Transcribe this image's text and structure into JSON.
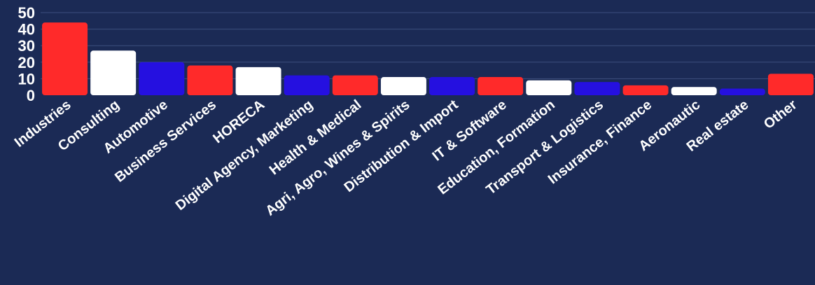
{
  "chart_data": {
    "type": "bar",
    "categories": [
      "Industries",
      "Consulting",
      "Automotive",
      "Business Services",
      "HORECA",
      "Digital Agency, Marketing",
      "Health & Medical",
      "Agri, Agro, Wines & Spirits",
      "Distribution & Import",
      "IT & Software",
      "Education, Formation",
      "Transport & Logistics",
      "Insurance, Finance",
      "Aeronautic",
      "Real estate",
      "Other"
    ],
    "values": [
      44,
      27,
      20,
      18,
      17,
      12,
      12,
      11,
      11,
      11,
      9,
      8,
      6,
      5,
      4,
      13
    ],
    "bar_colors": [
      "#ff2a2a",
      "#ffffff",
      "#2510e0",
      "#ff2a2a",
      "#ffffff",
      "#2510e0",
      "#ff2a2a",
      "#ffffff",
      "#2510e0",
      "#ff2a2a",
      "#ffffff",
      "#2510e0",
      "#ff2a2a",
      "#ffffff",
      "#2510e0",
      "#ff2a2a"
    ],
    "y_ticks": [
      0,
      10,
      20,
      30,
      40,
      50
    ],
    "ylim": [
      0,
      50
    ],
    "grid": true,
    "legend": "none",
    "title": "",
    "xlabel": "",
    "ylabel": "",
    "background": "#1b2a55"
  }
}
